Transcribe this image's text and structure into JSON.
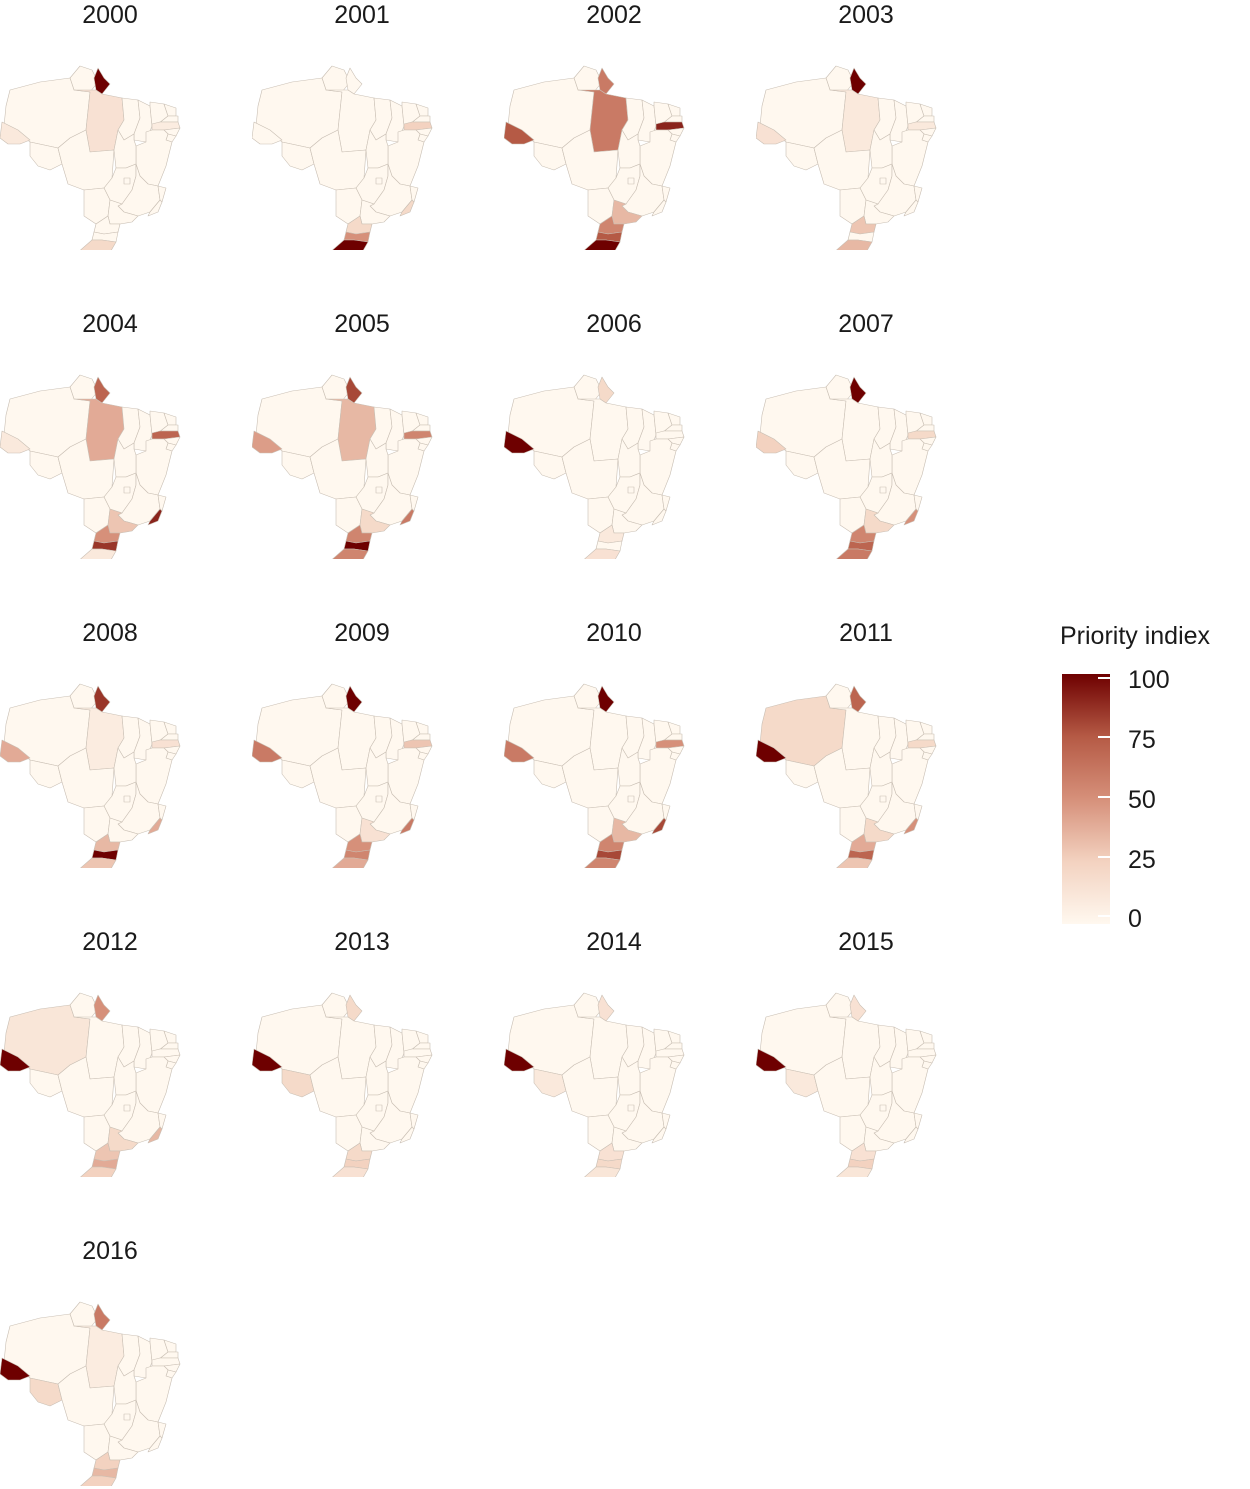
{
  "figure": {
    "type": "choropleth-small-multiples",
    "region": "Brazil (states)",
    "legend": {
      "title": "Priority indiex",
      "ticks": [
        "100",
        "75",
        "50",
        "25",
        "0"
      ],
      "scale_min": 0,
      "scale_max": 100,
      "colors": {
        "low": "#fff8ef",
        "mid": "#d6907a",
        "high": "#6e0000",
        "border": "#c9bfb4"
      }
    },
    "panels": [
      {
        "year": "2000",
        "values": {
          "AP": 100,
          "PA": 15,
          "AC": 10,
          "PE": 8,
          "RS": 20
        }
      },
      {
        "year": "2001",
        "values": {
          "RS": 100,
          "SC": 50,
          "PR": 20,
          "RJ": 20,
          "PE": 25
        }
      },
      {
        "year": "2002",
        "values": {
          "AP": 60,
          "PA": 60,
          "AC": 75,
          "PE": 90,
          "RS": 100,
          "SC": 75,
          "PR": 55,
          "SP": 35
        }
      },
      {
        "year": "2003",
        "values": {
          "AP": 100,
          "PA": 10,
          "AC": 15,
          "PE": 10,
          "RS": 35,
          "PR": 30
        }
      },
      {
        "year": "2004",
        "values": {
          "AP": 70,
          "PA": 40,
          "PE": 70,
          "RJ": 90,
          "SP": 30,
          "PR": 50,
          "SC": 85,
          "RS": 10,
          "AC": 10
        }
      },
      {
        "year": "2005",
        "values": {
          "AP": 80,
          "PA": 35,
          "PE": 55,
          "RJ": 60,
          "SP": 20,
          "PR": 55,
          "SC": 100,
          "RS": 55,
          "AC": 45
        }
      },
      {
        "year": "2006",
        "values": {
          "AP": 20,
          "AC": 100,
          "RS": 15,
          "PR": 10
        }
      },
      {
        "year": "2007",
        "values": {
          "AP": 100,
          "AC": 25,
          "PE": 20,
          "RJ": 50,
          "SP": 20,
          "PR": 55,
          "SC": 70,
          "RS": 60
        }
      },
      {
        "year": "2008",
        "values": {
          "AP": 85,
          "AC": 40,
          "PA": 8,
          "PE": 15,
          "RJ": 40,
          "SC": 100,
          "PR": 35,
          "RS": 30
        }
      },
      {
        "year": "2009",
        "values": {
          "AP": 100,
          "AC": 60,
          "PE": 30,
          "RJ": 60,
          "SP": 15,
          "PR": 50,
          "SC": 55,
          "RS": 40
        }
      },
      {
        "year": "2010",
        "values": {
          "AP": 100,
          "AC": 60,
          "PE": 50,
          "RJ": 80,
          "SP": 35,
          "PR": 55,
          "SC": 80,
          "RS": 55
        }
      },
      {
        "year": "2011",
        "values": {
          "AP": 70,
          "AC": 100,
          "AM": 20,
          "PE": 20,
          "RJ": 50,
          "SP": 20,
          "PR": 40,
          "SC": 70,
          "RS": 30
        }
      },
      {
        "year": "2012",
        "values": {
          "AP": 50,
          "AC": 100,
          "AM": 12,
          "RJ": 35,
          "SP": 20,
          "PR": 30,
          "SC": 40,
          "RS": 25
        }
      },
      {
        "year": "2013",
        "values": {
          "AP": 20,
          "AC": 100,
          "RO": 20,
          "PR": 20,
          "SC": 25,
          "RS": 15
        }
      },
      {
        "year": "2014",
        "values": {
          "AP": 15,
          "AC": 100,
          "RO": 10,
          "PR": 15,
          "SC": 20,
          "RS": 12
        }
      },
      {
        "year": "2015",
        "values": {
          "AP": 15,
          "AC": 100,
          "RO": 10,
          "PR": 15,
          "SC": 25,
          "RS": 12
        }
      },
      {
        "year": "2016",
        "values": {
          "AP": 60,
          "AC": 100,
          "RO": 20,
          "PA": 8,
          "PR": 25,
          "SC": 35,
          "RS": 25
        }
      }
    ]
  }
}
